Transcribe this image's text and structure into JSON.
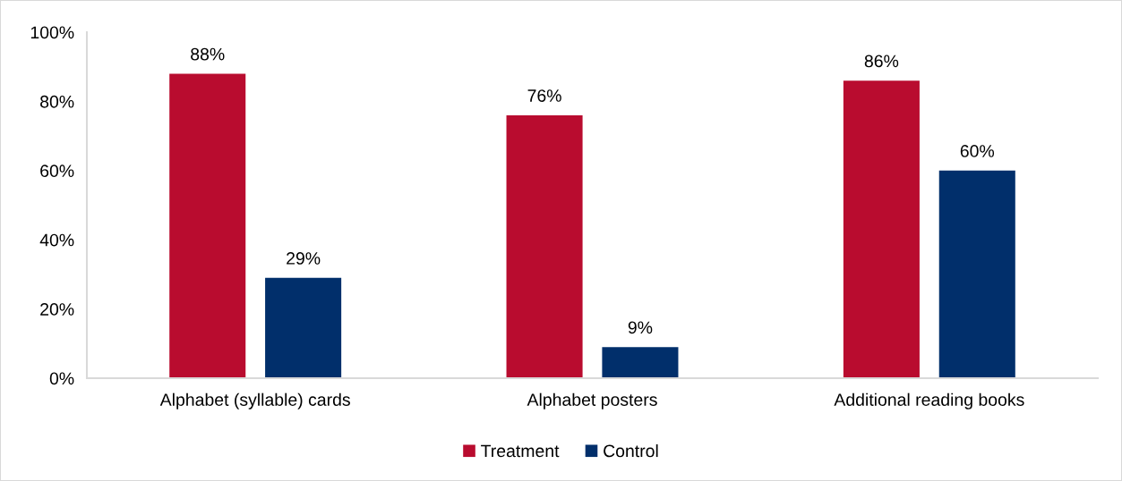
{
  "chart_data": {
    "type": "bar",
    "categories": [
      "Alphabet (syllable) cards",
      "Alphabet posters",
      "Additional reading books"
    ],
    "series": [
      {
        "name": "Treatment",
        "color": "#b90c2f",
        "values": [
          88,
          76,
          86
        ],
        "value_labels": [
          "88%",
          "76%",
          "86%"
        ]
      },
      {
        "name": "Control",
        "color": "#012f6b",
        "values": [
          29,
          9,
          60
        ],
        "value_labels": [
          "29%",
          "9%",
          "60%"
        ]
      }
    ],
    "ylim": [
      0,
      100
    ],
    "yticks": [
      {
        "value": 0,
        "label": "0%"
      },
      {
        "value": 20,
        "label": "20%"
      },
      {
        "value": 40,
        "label": "40%"
      },
      {
        "value": 60,
        "label": "60%"
      },
      {
        "value": 80,
        "label": "80%"
      },
      {
        "value": 100,
        "label": "100%"
      }
    ],
    "grid": false,
    "legend": "bottom"
  }
}
